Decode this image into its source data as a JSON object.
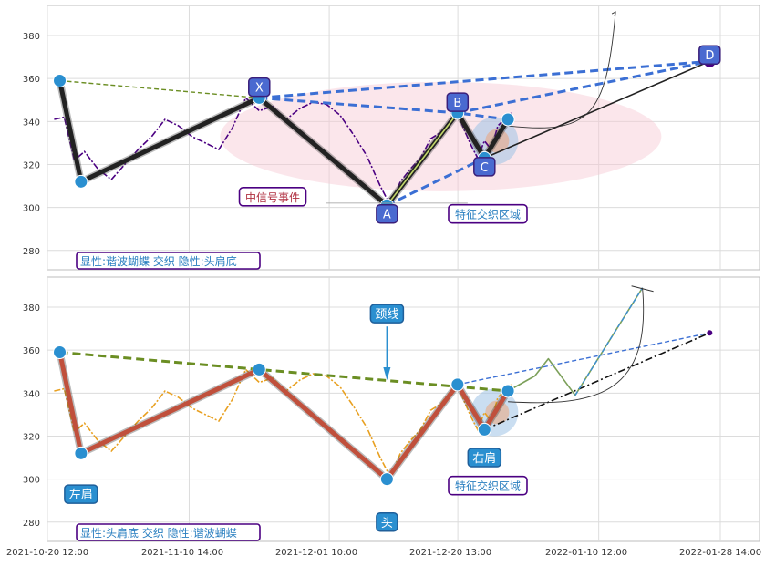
{
  "chart_data": {
    "type": "line",
    "x_ticks": [
      "2021-10-20 12:00",
      "2021-11-10 14:00",
      "2021-12-01 10:00",
      "2021-12-20 13:00",
      "2022-01-10 12:00",
      "2022-01-28 14:00"
    ],
    "panels": [
      {
        "id": "top",
        "y_ticks": [
          280,
          300,
          320,
          340,
          360,
          380
        ],
        "ylim": [
          271,
          394
        ],
        "price_color": "#4b0082",
        "price_series": [
          {
            "x": "2021-10-21 12:00",
            "y": 341
          },
          {
            "x": "2021-10-23 00:00",
            "y": 342
          },
          {
            "x": "2021-10-24 12:00",
            "y": 322
          },
          {
            "x": "2021-10-26 00:00",
            "y": 326
          },
          {
            "x": "2021-10-28 00:00",
            "y": 318
          },
          {
            "x": "2021-10-30 00:00",
            "y": 313
          },
          {
            "x": "2021-11-01 00:00",
            "y": 320
          },
          {
            "x": "2021-11-03 00:00",
            "y": 327
          },
          {
            "x": "2021-11-05 00:00",
            "y": 333
          },
          {
            "x": "2021-11-07 00:00",
            "y": 341
          },
          {
            "x": "2021-11-09 00:00",
            "y": 338
          },
          {
            "x": "2021-11-11 00:00",
            "y": 333
          },
          {
            "x": "2021-11-13 00:00",
            "y": 330
          },
          {
            "x": "2021-11-15 00:00",
            "y": 327
          },
          {
            "x": "2021-11-17 00:00",
            "y": 337
          },
          {
            "x": "2021-11-19 00:00",
            "y": 351
          },
          {
            "x": "2021-11-21 00:00",
            "y": 345
          },
          {
            "x": "2021-11-23 00:00",
            "y": 347
          },
          {
            "x": "2021-11-25 00:00",
            "y": 341
          },
          {
            "x": "2021-11-27 00:00",
            "y": 346
          },
          {
            "x": "2021-11-29 00:00",
            "y": 349
          },
          {
            "x": "2021-12-01 00:00",
            "y": 348
          },
          {
            "x": "2021-12-03 00:00",
            "y": 343
          },
          {
            "x": "2021-12-05 00:00",
            "y": 334
          },
          {
            "x": "2021-12-07 00:00",
            "y": 324
          },
          {
            "x": "2021-12-09 00:00",
            "y": 310
          },
          {
            "x": "2021-12-10 12:00",
            "y": 301
          },
          {
            "x": "2021-12-12 00:00",
            "y": 312
          },
          {
            "x": "2021-12-13 12:00",
            "y": 318
          },
          {
            "x": "2021-12-15 00:00",
            "y": 323
          },
          {
            "x": "2021-12-16 12:00",
            "y": 332
          },
          {
            "x": "2021-12-18 00:00",
            "y": 335
          },
          {
            "x": "2021-12-19 12:00",
            "y": 341
          },
          {
            "x": "2021-12-20 12:00",
            "y": 344
          },
          {
            "x": "2021-12-21 12:00",
            "y": 336
          },
          {
            "x": "2021-12-22 12:00",
            "y": 329
          },
          {
            "x": "2021-12-23 12:00",
            "y": 323
          },
          {
            "x": "2021-12-24 12:00",
            "y": 331
          },
          {
            "x": "2021-12-25 12:00",
            "y": 327
          },
          {
            "x": "2021-12-26 12:00",
            "y": 338
          },
          {
            "x": "2021-12-27 12:00",
            "y": 341
          },
          {
            "x": "2021-12-28 12:00",
            "y": 344
          }
        ],
        "pattern_lines": [
          {
            "points": [
              {
                "x": "2021-10-22 08:00",
                "y": 359
              },
              {
                "x": "2021-10-25 12:00",
                "y": 312
              },
              {
                "x": "2021-11-21 00:00",
                "y": 351
              },
              {
                "x": "2021-12-10 00:00",
                "y": 301
              },
              {
                "x": "2021-12-20 12:00",
                "y": 344
              },
              {
                "x": "2021-12-24 12:00",
                "y": 323
              },
              {
                "x": "2021-12-28 00:00",
                "y": 341
              }
            ],
            "color": "#222222",
            "style": "solid-thick"
          },
          {
            "points": [
              {
                "x": "2021-10-22 08:00",
                "y": 359
              },
              {
                "x": "2021-11-21 00:00",
                "y": 351
              }
            ],
            "color": "#6b8e23",
            "style": "dashed"
          },
          {
            "points": [
              {
                "x": "2021-11-21 00:00",
                "y": 351
              },
              {
                "x": "2021-12-20 12:00",
                "y": 344
              },
              {
                "x": "2021-12-28 00:00",
                "y": 341
              }
            ],
            "color": "#3b6fd4",
            "style": "dashed-thick"
          },
          {
            "points": [
              {
                "x": "2021-11-21 00:00",
                "y": 351
              },
              {
                "x": "2022-01-27 00:00",
                "y": 368
              }
            ],
            "color": "#3b6fd4",
            "style": "dashed-thick"
          },
          {
            "points": [
              {
                "x": "2021-12-20 12:00",
                "y": 344
              },
              {
                "x": "2022-01-27 00:00",
                "y": 368
              }
            ],
            "color": "#3b6fd4",
            "style": "dashed-thick"
          },
          {
            "points": [
              {
                "x": "2021-12-10 00:00",
                "y": 301
              },
              {
                "x": "2021-12-24 12:00",
                "y": 323
              }
            ],
            "color": "#3b6fd4",
            "style": "dashed-thick"
          },
          {
            "points": [
              {
                "x": "2021-12-24 12:00",
                "y": 323
              },
              {
                "x": "2022-01-27 00:00",
                "y": 368
              }
            ],
            "color": "#222222",
            "style": "solid"
          },
          {
            "points": [
              {
                "x": "2021-12-10 00:00",
                "y": 301
              },
              {
                "x": "2021-12-20 12:00",
                "y": 344
              }
            ],
            "color": "#c4d96a",
            "style": "solid"
          }
        ],
        "pivots": [
          {
            "x": "2021-10-22 08:00",
            "y": 359
          },
          {
            "x": "2021-10-25 12:00",
            "y": 312
          },
          {
            "x": "2021-11-21 00:00",
            "y": 351
          },
          {
            "x": "2021-12-10 00:00",
            "y": 301
          },
          {
            "x": "2021-12-20 12:00",
            "y": 344
          },
          {
            "x": "2021-12-24 12:00",
            "y": 323
          },
          {
            "x": "2021-12-28 00:00",
            "y": 341
          },
          {
            "x": "2022-01-27 00:00",
            "y": 368
          }
        ],
        "point_labels": [
          {
            "text": "X",
            "x": "2021-11-21 00:00",
            "y": 356
          },
          {
            "text": "A",
            "x": "2021-12-10 00:00",
            "y": 297
          },
          {
            "text": "B",
            "x": "2021-12-20 12:00",
            "y": 349
          },
          {
            "text": "C",
            "x": "2021-12-24 12:00",
            "y": 319
          },
          {
            "text": "D",
            "x": "2022-01-27 00:00",
            "y": 371
          }
        ],
        "annotations": [
          {
            "text": "中信号事件",
            "x": "2021-11-23 00:00",
            "y": 305
          },
          {
            "text": "特征交织区域",
            "x": "2021-12-25 00:00",
            "y": 297
          }
        ],
        "legend_text": "显性:谐波蝴蝶 交织 隐性:头肩底"
      },
      {
        "id": "bottom",
        "y_ticks": [
          280,
          300,
          320,
          340,
          360,
          380
        ],
        "ylim": [
          271,
          394
        ],
        "price_color": "#e8a020",
        "price_series": [
          {
            "x": "2021-10-21 12:00",
            "y": 341
          },
          {
            "x": "2021-10-23 00:00",
            "y": 342
          },
          {
            "x": "2021-10-24 12:00",
            "y": 322
          },
          {
            "x": "2021-10-26 00:00",
            "y": 326
          },
          {
            "x": "2021-10-28 00:00",
            "y": 318
          },
          {
            "x": "2021-10-30 00:00",
            "y": 313
          },
          {
            "x": "2021-11-01 00:00",
            "y": 320
          },
          {
            "x": "2021-11-03 00:00",
            "y": 327
          },
          {
            "x": "2021-11-05 00:00",
            "y": 333
          },
          {
            "x": "2021-11-07 00:00",
            "y": 341
          },
          {
            "x": "2021-11-09 00:00",
            "y": 338
          },
          {
            "x": "2021-11-11 00:00",
            "y": 333
          },
          {
            "x": "2021-11-13 00:00",
            "y": 330
          },
          {
            "x": "2021-11-15 00:00",
            "y": 327
          },
          {
            "x": "2021-11-17 00:00",
            "y": 337
          },
          {
            "x": "2021-11-19 00:00",
            "y": 351
          },
          {
            "x": "2021-11-21 00:00",
            "y": 345
          },
          {
            "x": "2021-11-23 00:00",
            "y": 347
          },
          {
            "x": "2021-11-25 00:00",
            "y": 341
          },
          {
            "x": "2021-11-27 00:00",
            "y": 346
          },
          {
            "x": "2021-11-29 00:00",
            "y": 349
          },
          {
            "x": "2021-12-01 00:00",
            "y": 348
          },
          {
            "x": "2021-12-03 00:00",
            "y": 343
          },
          {
            "x": "2021-12-05 00:00",
            "y": 334
          },
          {
            "x": "2021-12-07 00:00",
            "y": 324
          },
          {
            "x": "2021-12-09 00:00",
            "y": 310
          },
          {
            "x": "2021-12-10 12:00",
            "y": 301
          },
          {
            "x": "2021-12-12 00:00",
            "y": 312
          },
          {
            "x": "2021-12-13 12:00",
            "y": 318
          },
          {
            "x": "2021-12-15 00:00",
            "y": 323
          },
          {
            "x": "2021-12-16 12:00",
            "y": 332
          },
          {
            "x": "2021-12-18 00:00",
            "y": 335
          },
          {
            "x": "2021-12-19 12:00",
            "y": 341
          },
          {
            "x": "2021-12-20 12:00",
            "y": 344
          },
          {
            "x": "2021-12-21 12:00",
            "y": 336
          },
          {
            "x": "2021-12-22 12:00",
            "y": 329
          },
          {
            "x": "2021-12-23 12:00",
            "y": 323
          },
          {
            "x": "2021-12-24 12:00",
            "y": 331
          },
          {
            "x": "2021-12-25 12:00",
            "y": 327
          },
          {
            "x": "2021-12-26 12:00",
            "y": 338
          },
          {
            "x": "2021-12-27 12:00",
            "y": 341
          },
          {
            "x": "2021-12-28 12:00",
            "y": 344
          }
        ],
        "pattern_lines": [
          {
            "points": [
              {
                "x": "2021-10-22 08:00",
                "y": 359
              },
              {
                "x": "2021-10-25 12:00",
                "y": 312
              },
              {
                "x": "2021-11-21 00:00",
                "y": 351
              },
              {
                "x": "2021-12-10 00:00",
                "y": 300
              },
              {
                "x": "2021-12-20 12:00",
                "y": 344
              },
              {
                "x": "2021-12-24 12:00",
                "y": 323
              },
              {
                "x": "2021-12-28 00:00",
                "y": 341
              }
            ],
            "color": "#c0503c",
            "style": "solid-thick"
          },
          {
            "points": [
              {
                "x": "2021-10-22 08:00",
                "y": 359
              },
              {
                "x": "2021-12-28 00:00",
                "y": 341
              }
            ],
            "color": "#6b8e23",
            "style": "dashed-thick"
          },
          {
            "points": [
              {
                "x": "2021-12-20 12:00",
                "y": 344
              },
              {
                "x": "2022-01-27 00:00",
                "y": 368
              }
            ],
            "color": "#3b6fd4",
            "style": "dashed"
          },
          {
            "points": [
              {
                "x": "2021-12-24 12:00",
                "y": 323
              },
              {
                "x": "2022-01-27 00:00",
                "y": 368
              }
            ],
            "color": "#111111",
            "style": "dashdot"
          },
          {
            "points": [
              {
                "x": "2021-12-28 00:00",
                "y": 341
              },
              {
                "x": "2022-01-01 00:00",
                "y": 348
              },
              {
                "x": "2022-01-03 00:00",
                "y": 356
              },
              {
                "x": "2022-01-07 00:00",
                "y": 339
              },
              {
                "x": "2022-01-17 00:00",
                "y": 389
              }
            ],
            "color": "#7ca05a",
            "style": "solid"
          },
          {
            "points": [
              {
                "x": "2022-01-07 00:00",
                "y": 339
              },
              {
                "x": "2022-01-17 00:00",
                "y": 389
              }
            ],
            "color": "#3b8fd4",
            "style": "dashed"
          }
        ],
        "pivots": [
          {
            "x": "2021-10-22 08:00",
            "y": 359
          },
          {
            "x": "2021-10-25 12:00",
            "y": 312
          },
          {
            "x": "2021-11-21 00:00",
            "y": 351
          },
          {
            "x": "2021-12-10 00:00",
            "y": 300
          },
          {
            "x": "2021-12-20 12:00",
            "y": 344
          },
          {
            "x": "2021-12-24 12:00",
            "y": 323
          },
          {
            "x": "2021-12-28 00:00",
            "y": 341
          }
        ],
        "end_point": {
          "x": "2022-01-27 00:00",
          "y": 368
        },
        "point_labels": [
          {
            "text": "左肩",
            "x": "2021-10-25 12:00",
            "y": 293
          },
          {
            "text": "头",
            "x": "2021-12-10 00:00",
            "y": 280
          },
          {
            "text": "右肩",
            "x": "2021-12-24 12:00",
            "y": 310
          },
          {
            "text": "颈线",
            "x": "2021-12-10 00:00",
            "y": 377
          }
        ],
        "annotations": [
          {
            "text": "特征交织区域",
            "x": "2021-12-25 00:00",
            "y": 297
          }
        ],
        "legend_text": "显性:头肩底 交织 隐性:谐波蝴蝶"
      }
    ]
  }
}
